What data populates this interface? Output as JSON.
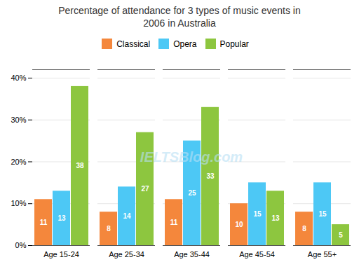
{
  "chart_data": {
    "type": "bar",
    "title": "Percentage of attendance for 3 types of music events in\n2006 in Australia",
    "categories": [
      "Age 15-24",
      "Age 25-34",
      "Age 35-44",
      "Age 45-54",
      "Age 55+"
    ],
    "series": [
      {
        "name": "Classical",
        "color": "#F4873C",
        "values": [
          11,
          8,
          11,
          10,
          8
        ]
      },
      {
        "name": "Opera",
        "color": "#4DC8F5",
        "values": [
          13,
          14,
          25,
          15,
          15
        ]
      },
      {
        "name": "Popular",
        "color": "#8DC63F",
        "values": [
          38,
          27,
          33,
          13,
          5
        ]
      }
    ],
    "ylim": [
      0,
      42
    ],
    "yticks": [
      {
        "value": 0,
        "label": "0%"
      },
      {
        "value": 10,
        "label": "10%"
      },
      {
        "value": 20,
        "label": "20%"
      },
      {
        "value": 30,
        "label": "30%"
      },
      {
        "value": 40,
        "label": "40%"
      }
    ],
    "grid": true,
    "legend": "top",
    "data_labels": true,
    "annotations": [
      "IELTSBlog.com"
    ]
  }
}
